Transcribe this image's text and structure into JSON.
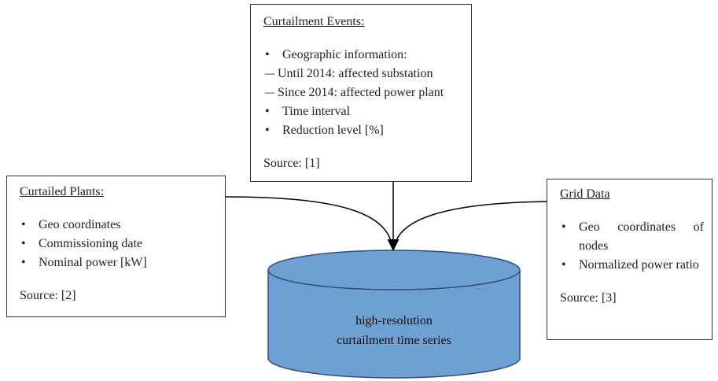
{
  "events": {
    "title": "Curtailment Events:",
    "items": [
      {
        "text": "Geographic information:",
        "sub": [
          "Until 2014: affected substation",
          "Since 2014: affected power plant"
        ]
      },
      {
        "text": "Time interval"
      },
      {
        "text": "Reduction level [%]"
      }
    ],
    "source": "Source: [1]"
  },
  "plants": {
    "title": "Curtailed Plants:",
    "items": [
      {
        "text": "Geo coordinates"
      },
      {
        "text": "Commissioning date"
      },
      {
        "text": "Nominal power [kW]"
      }
    ],
    "source": "Source: [2]"
  },
  "grid": {
    "title": "Grid Data",
    "items": [
      {
        "text": "Geo coordinates of nodes"
      },
      {
        "text": "Normalized power ratio"
      }
    ],
    "source": "Source: [3]"
  },
  "database": {
    "lines": [
      "high-resolution",
      "curtailment time series"
    ]
  }
}
